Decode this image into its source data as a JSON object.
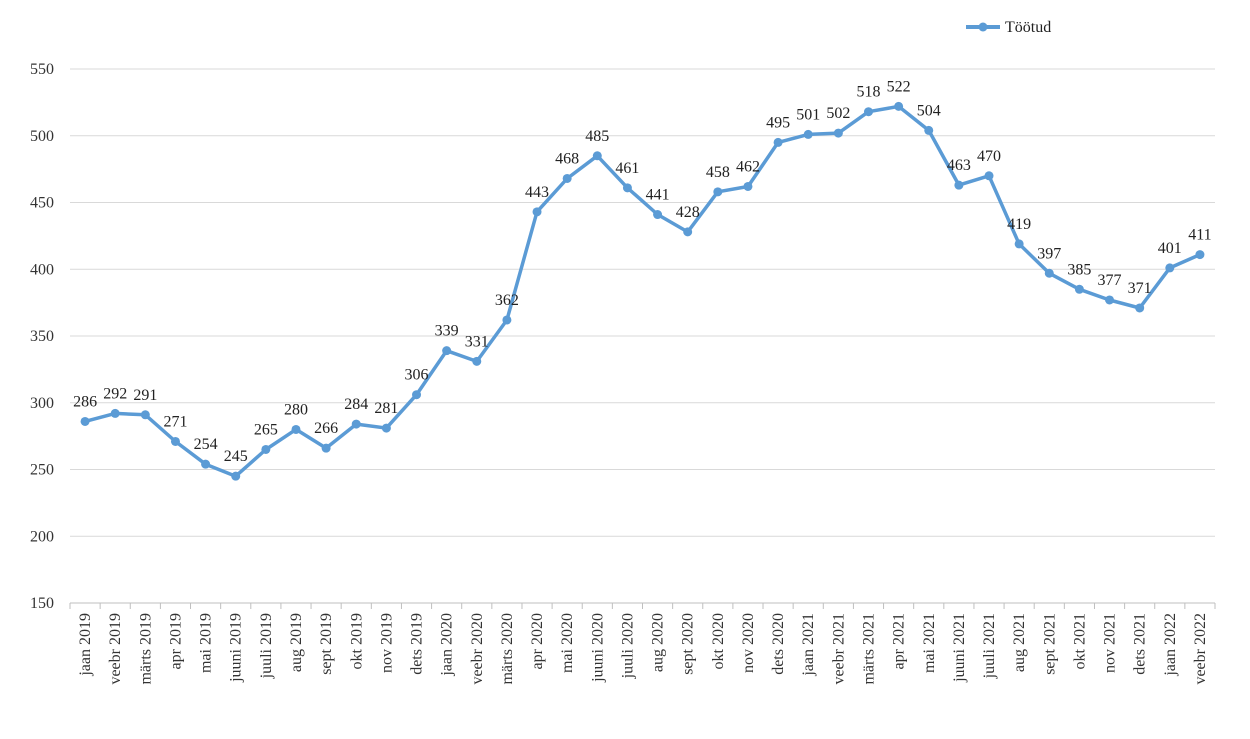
{
  "chart_data": {
    "type": "line",
    "title": "",
    "xlabel": "",
    "ylabel": "",
    "ylim": [
      150,
      550
    ],
    "yticks": [
      150,
      200,
      250,
      300,
      350,
      400,
      450,
      500,
      550
    ],
    "grid": true,
    "legend_position": "top-right",
    "categories": [
      "jaan 2019",
      "veebr 2019",
      "märts 2019",
      "apr 2019",
      "mai 2019",
      "juuni 2019",
      "juuli 2019",
      "aug 2019",
      "sept 2019",
      "okt 2019",
      "nov 2019",
      "dets 2019",
      "jaan 2020",
      "veebr 2020",
      "märts 2020",
      "apr 2020",
      "mai 2020",
      "juuni 2020",
      "juuli 2020",
      "aug 2020",
      "sept 2020",
      "okt 2020",
      "nov 2020",
      "dets 2020",
      "jaan 2021",
      "veebr 2021",
      "märts 2021",
      "apr 2021",
      "mai 2021",
      "juuni 2021",
      "juuli 2021",
      "aug 2021",
      "sept 2021",
      "okt 2021",
      "nov 2021",
      "dets 2021",
      "jaan 2022",
      "veebr 2022"
    ],
    "series": [
      {
        "name": "Töötud",
        "color": "#5b9bd5",
        "values": [
          286,
          292,
          291,
          271,
          254,
          245,
          265,
          280,
          266,
          284,
          281,
          306,
          339,
          331,
          362,
          443,
          468,
          485,
          461,
          441,
          428,
          458,
          462,
          495,
          501,
          502,
          518,
          522,
          504,
          463,
          470,
          419,
          397,
          385,
          377,
          371,
          401,
          411
        ]
      }
    ]
  }
}
